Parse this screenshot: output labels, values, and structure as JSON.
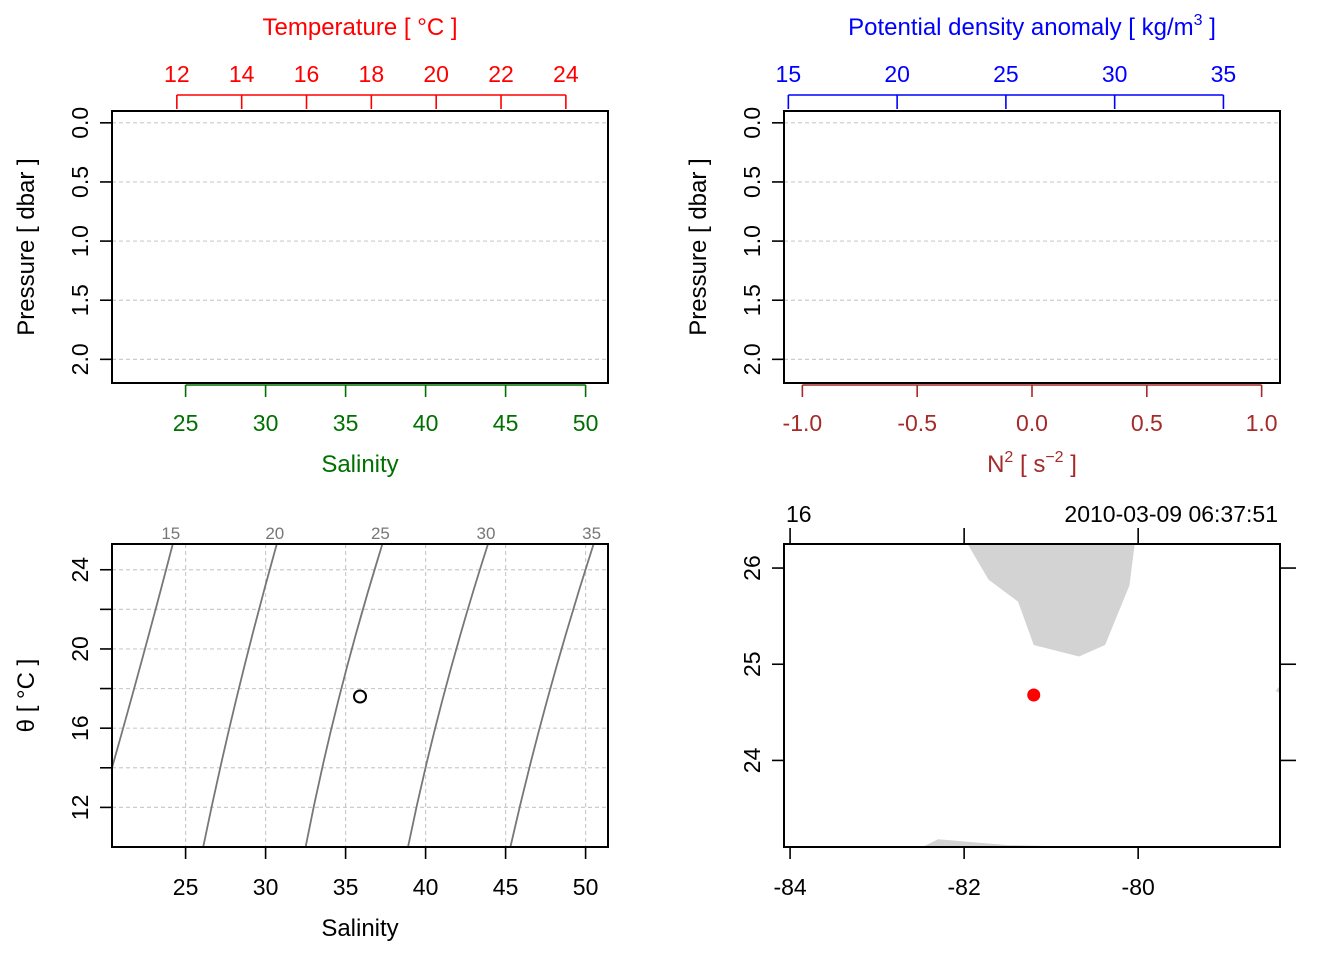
{
  "colors": {
    "temperature": "#ff0000",
    "density": "#0000ff",
    "salinity": "#007000",
    "n2": "#a52a2a",
    "axis": "#000000",
    "grid": "#cccccc",
    "isopycnal": "#777777",
    "land": "#d3d3d3",
    "station": "#ff0000"
  },
  "chart_data": [
    {
      "type": "line",
      "panel": "temperature-salinity-profile",
      "top_axis": {
        "label": "Temperature [ °C ]",
        "ticks": [
          12,
          14,
          16,
          18,
          20,
          22,
          24
        ],
        "range": [
          10.0,
          25.3
        ]
      },
      "bottom_axis": {
        "label": "Salinity",
        "ticks": [
          25,
          30,
          35,
          40,
          45,
          50
        ],
        "range": [
          20.4,
          51.4
        ]
      },
      "left_axis": {
        "label": "Pressure [ dbar ]",
        "ticks": [
          0.0,
          0.5,
          1.0,
          1.5,
          2.0
        ],
        "tick_labels": [
          "0.0",
          "0.5",
          "1.0",
          "1.5",
          "2.0"
        ],
        "range": [
          2.2,
          -0.1
        ],
        "reversed": true
      },
      "grid": "dashed-horizontal",
      "series": []
    },
    {
      "type": "line",
      "panel": "density-n2-profile",
      "top_axis": {
        "label": "Potential density anomaly [ kg/m",
        "label_superscript": "3",
        "label_close": " ]",
        "ticks": [
          15,
          20,
          25,
          30,
          35
        ],
        "range": [
          14.8,
          37.6
        ]
      },
      "bottom_axis": {
        "label": "N",
        "label_superscript": "2",
        "label_unit": " [ s",
        "label_unit_superscript": "−2",
        "label_close": " ]",
        "ticks": [
          -1.0,
          -0.5,
          0.0,
          0.5,
          1.0
        ],
        "tick_labels": [
          "-1.0",
          "-0.5",
          "0.0",
          "0.5",
          "1.0"
        ],
        "range": [
          -1.08,
          1.08
        ]
      },
      "left_axis": {
        "label": "Pressure [ dbar ]",
        "ticks": [
          0.0,
          0.5,
          1.0,
          1.5,
          2.0
        ],
        "tick_labels": [
          "0.0",
          "0.5",
          "1.0",
          "1.5",
          "2.0"
        ],
        "range": [
          2.2,
          -0.1
        ],
        "reversed": true
      },
      "grid": "dashed-horizontal",
      "series": []
    },
    {
      "type": "scatter",
      "panel": "ts-diagram",
      "xlabel": "Salinity",
      "ylabel": "θ [ °C ]",
      "x_ticks": [
        25,
        30,
        35,
        40,
        45,
        50
      ],
      "y_ticks": [
        12,
        16,
        20,
        24
      ],
      "x_range": [
        20.4,
        51.4
      ],
      "y_range": [
        10.0,
        25.3
      ],
      "grid": "dashed",
      "isopycnals": [
        {
          "label": "15",
          "points": [
            [
              20.4,
              14.0
            ],
            [
              22.5,
              20.0
            ],
            [
              24.2,
              25.3
            ]
          ]
        },
        {
          "label": "20",
          "points": [
            [
              26.1,
              10.0
            ],
            [
              28.0,
              17.5
            ],
            [
              30.7,
              25.3
            ]
          ]
        },
        {
          "label": "25",
          "points": [
            [
              32.5,
              10.0
            ],
            [
              34.3,
              17.5
            ],
            [
              37.3,
              25.3
            ]
          ]
        },
        {
          "label": "30",
          "points": [
            [
              38.9,
              10.0
            ],
            [
              40.8,
              17.5
            ],
            [
              43.9,
              25.3
            ]
          ]
        },
        {
          "label": "35",
          "points": [
            [
              45.3,
              10.0
            ],
            [
              47.4,
              17.5
            ],
            [
              50.5,
              25.3
            ]
          ]
        }
      ],
      "points": [
        {
          "salinity": 35.9,
          "theta": 17.6
        }
      ]
    },
    {
      "type": "map",
      "panel": "station-map",
      "top_left_label": "16",
      "top_right_label": "2010-03-09 06:37:51",
      "x_ticks": [
        -84,
        -82,
        -80
      ],
      "y_ticks": [
        24,
        25,
        26
      ],
      "x_range": [
        -84.07,
        -78.37
      ],
      "y_range": [
        23.1,
        26.25
      ],
      "station": {
        "lon": -81.2,
        "lat": 24.68
      },
      "land": [
        [
          [
            -81.96,
            26.25
          ],
          [
            -81.72,
            25.88
          ],
          [
            -81.38,
            25.65
          ],
          [
            -81.2,
            25.2
          ],
          [
            -80.68,
            25.08
          ],
          [
            -80.38,
            25.2
          ],
          [
            -80.1,
            25.82
          ],
          [
            -80.04,
            26.25
          ]
        ],
        [
          [
            -82.48,
            23.1
          ],
          [
            -82.3,
            23.18
          ],
          [
            -81.5,
            23.12
          ],
          [
            -80.6,
            23.1
          ]
        ],
        [
          [
            -78.37,
            24.78
          ],
          [
            -78.42,
            24.72
          ],
          [
            -78.37,
            24.7
          ]
        ]
      ]
    }
  ]
}
